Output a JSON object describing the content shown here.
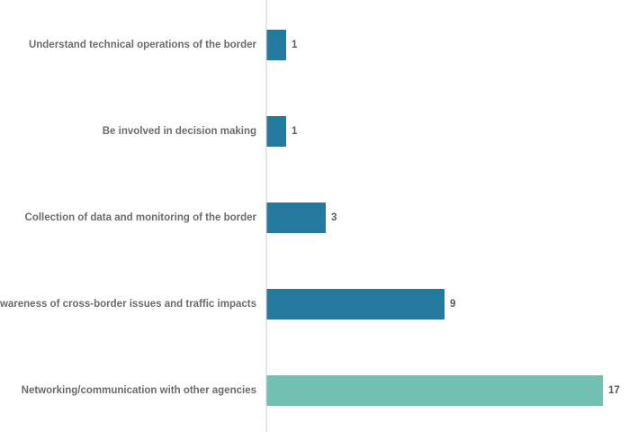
{
  "chart_data": {
    "type": "bar",
    "orientation": "horizontal",
    "categories": [
      "Understand technical operations of the border",
      "Be involved in decision making",
      "Collection of data and monitoring of the border",
      "Awareness of cross-border issues and traffic impacts",
      "Networking/communication with other agencies"
    ],
    "values": [
      1,
      1,
      3,
      9,
      17
    ],
    "value_labels": [
      "1",
      "1",
      "3",
      "9",
      "17"
    ],
    "colors": [
      "#23799e",
      "#23799e",
      "#23799e",
      "#23799e",
      "#72c0b1"
    ],
    "title": "",
    "xlabel": "",
    "ylabel": "",
    "xlim": [
      0,
      17
    ],
    "grid": false,
    "legend": "none",
    "axis_color": "#d0d0d0"
  }
}
